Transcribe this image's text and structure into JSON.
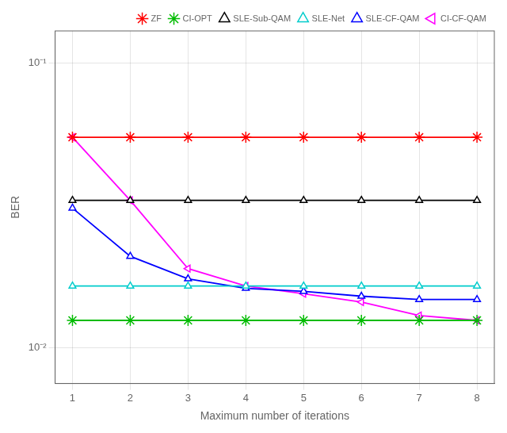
{
  "chart_data": {
    "type": "line",
    "x": [
      1,
      2,
      3,
      4,
      5,
      6,
      7,
      8
    ],
    "series": [
      {
        "name": "ZF",
        "color": "#ff0000",
        "marker": "star",
        "values": [
          0.055,
          0.055,
          0.055,
          0.055,
          0.055,
          0.055,
          0.055,
          0.055
        ]
      },
      {
        "name": "CI-OPT",
        "color": "#00bb00",
        "marker": "star",
        "values": [
          0.0125,
          0.0125,
          0.0125,
          0.0125,
          0.0125,
          0.0125,
          0.0125,
          0.0125
        ]
      },
      {
        "name": "SLE-Sub-QAM",
        "color": "#000000",
        "marker": "triangle_up",
        "values": [
          0.033,
          0.033,
          0.033,
          0.033,
          0.033,
          0.033,
          0.033,
          0.033
        ]
      },
      {
        "name": "SLE-Net",
        "color": "#00cccc",
        "marker": "triangle_up",
        "values": [
          0.0165,
          0.0165,
          0.0165,
          0.0165,
          0.0165,
          0.0165,
          0.0165,
          0.0165
        ]
      },
      {
        "name": "SLE-CF-QAM",
        "color": "#0000ff",
        "marker": "triangle_up",
        "values": [
          0.031,
          0.021,
          0.0175,
          0.0162,
          0.0158,
          0.0152,
          0.0148,
          0.0148
        ]
      },
      {
        "name": "CI-CF-QAM",
        "color": "#ff00ff",
        "marker": "triangle_left",
        "values": [
          0.055,
          0.033,
          0.019,
          0.0165,
          0.0155,
          0.0145,
          0.013,
          0.0125
        ]
      }
    ],
    "x_label": "Maximum number of iterations",
    "y_label": "BER",
    "xlim": [
      0.7,
      8.3
    ],
    "xticks": [
      1,
      2,
      3,
      4,
      5,
      6,
      7,
      8
    ],
    "ylim": [
      0.0075,
      0.13
    ],
    "yticks": [
      {
        "value": 0.01,
        "label": "10⁻²"
      },
      {
        "value": 0.1,
        "label": "10⁻¹"
      }
    ],
    "log": "y",
    "grid": true,
    "legend": "upper right"
  }
}
